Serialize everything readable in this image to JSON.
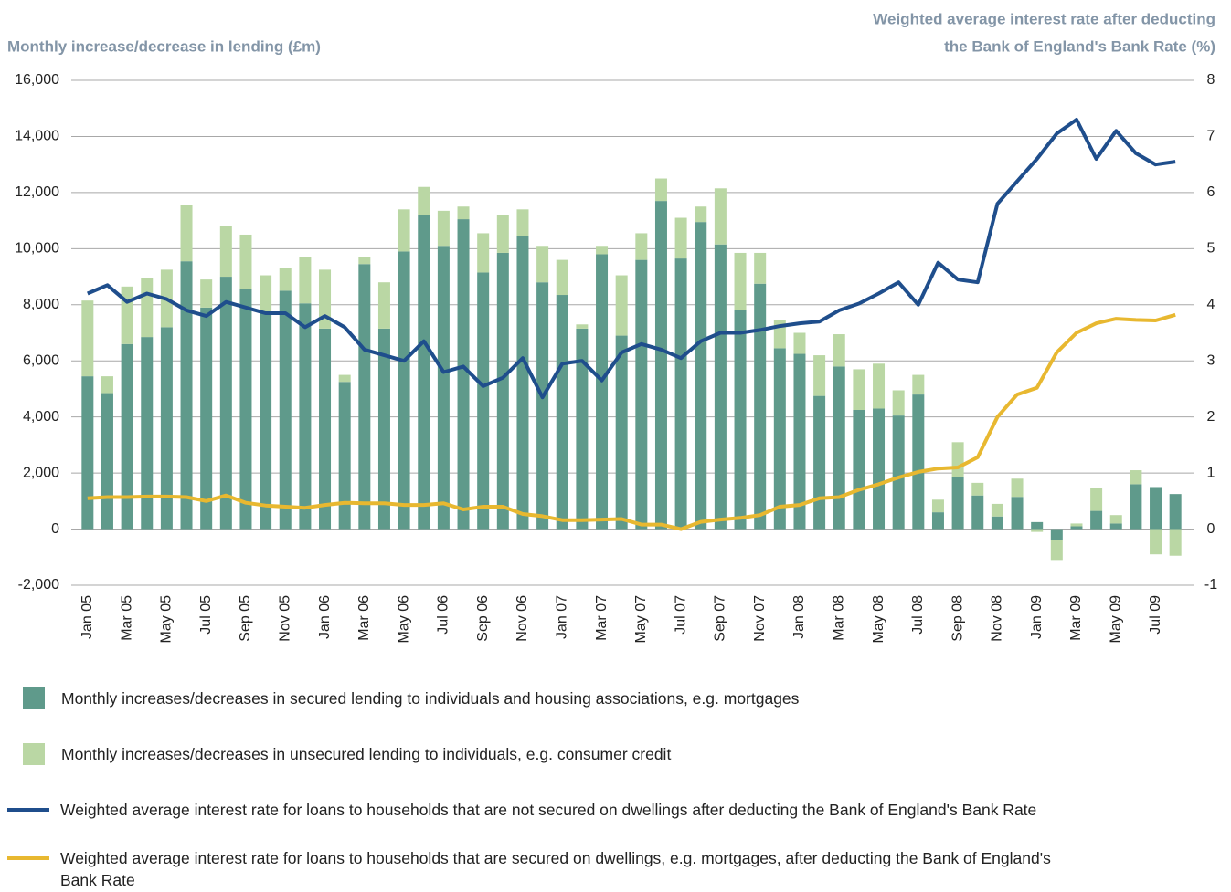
{
  "chart_data": {
    "type": "bar",
    "y_label": "Monthly increase/decrease in lending (£m)",
    "y2_label": [
      "Weighted average interest rate after deducting",
      "the Bank of England's Bank Rate (%)"
    ],
    "categories": [
      "Jan 05",
      null,
      "Mar 05",
      null,
      "May 05",
      null,
      "Jul 05",
      null,
      "Sep 05",
      null,
      "Nov 05",
      null,
      "Jan 06",
      null,
      "Mar 06",
      null,
      "May 06",
      null,
      "Jul 06",
      null,
      "Sep 06",
      null,
      "Nov 06",
      null,
      "Jan 07",
      null,
      "Mar 07",
      null,
      "May 07",
      null,
      "Jul 07",
      null,
      "Sep 07",
      null,
      "Nov 07",
      null,
      "Jan 08",
      null,
      "Mar 08",
      null,
      "May 08",
      null,
      "Jul 08",
      null,
      "Sep 08",
      null,
      "Nov 08",
      null,
      "Jan 09",
      null,
      "Mar 09",
      null,
      "May 09",
      null,
      "Jul 09",
      null
    ],
    "series": [
      {
        "name": "Monthly increases/decreases in secured lending to individuals and housing associations, e.g. mortgages",
        "type": "bar",
        "color": "#5f9a8b",
        "values": [
          5450,
          4850,
          6600,
          6850,
          7200,
          9550,
          7900,
          9000,
          8550,
          7700,
          8500,
          8050,
          7150,
          5250,
          9450,
          7150,
          9900,
          11200,
          10100,
          11050,
          9150,
          9850,
          10450,
          8800,
          8350,
          7150,
          9800,
          6900,
          9600,
          11700,
          9650,
          10950,
          10150,
          7800,
          8750,
          6450,
          6250,
          4750,
          5800,
          4250,
          4300,
          4050,
          4800,
          600,
          1850,
          1200,
          450,
          1150,
          250,
          -400,
          100,
          650,
          200,
          1600,
          1500,
          1250
        ]
      },
      {
        "name": "Monthly increases/decreases in unsecured lending to individuals, e.g. consumer credit",
        "type": "bar",
        "color": "#bad7a4",
        "values": [
          2700,
          600,
          2050,
          2100,
          2050,
          2000,
          1000,
          1800,
          1950,
          1350,
          800,
          1650,
          2100,
          250,
          250,
          1650,
          1500,
          1000,
          1250,
          450,
          1400,
          1350,
          950,
          1300,
          1250,
          150,
          300,
          2150,
          950,
          800,
          1450,
          550,
          2000,
          2050,
          1100,
          1000,
          750,
          1450,
          1150,
          1450,
          1600,
          900,
          700,
          450,
          1250,
          450,
          450,
          650,
          -100,
          -700,
          100,
          800,
          300,
          500,
          -900,
          -950
        ]
      },
      {
        "name": "Weighted average interest rate for loans to households that are not secured on dwellings after deducting the Bank of England's Bank Rate",
        "type": "line",
        "axis": "y2",
        "color": "#1f4e8c",
        "values": [
          4.2,
          4.35,
          4.05,
          4.2,
          4.1,
          3.9,
          3.8,
          4.05,
          3.95,
          3.85,
          3.85,
          3.6,
          3.8,
          3.6,
          3.2,
          3.1,
          3.0,
          3.35,
          2.8,
          2.9,
          2.55,
          2.7,
          3.05,
          2.35,
          2.95,
          3.0,
          2.65,
          3.15,
          3.3,
          3.2,
          3.05,
          3.35,
          3.5,
          3.5,
          3.55,
          3.62,
          3.67,
          3.7,
          3.9,
          4.02,
          4.2,
          4.4,
          4.0,
          4.75,
          4.45,
          4.4,
          5.8,
          6.2,
          6.6,
          7.05,
          7.3,
          6.6,
          7.1,
          6.7,
          6.5,
          6.55
        ]
      },
      {
        "name": "Weighted average interest rate for loans to households that are secured on dwellings, e.g. mortgages, after deducting the Bank of England's Bank Rate",
        "type": "line",
        "axis": "y2",
        "color": "#e8b830",
        "values": [
          0.55,
          0.57,
          0.57,
          0.58,
          0.58,
          0.57,
          0.5,
          0.6,
          0.47,
          0.42,
          0.4,
          0.38,
          0.43,
          0.47,
          0.46,
          0.46,
          0.43,
          0.43,
          0.46,
          0.35,
          0.4,
          0.4,
          0.27,
          0.23,
          0.16,
          0.16,
          0.17,
          0.18,
          0.08,
          0.08,
          0.0,
          0.13,
          0.17,
          0.2,
          0.25,
          0.4,
          0.43,
          0.55,
          0.57,
          0.7,
          0.8,
          0.92,
          1.02,
          1.08,
          1.1,
          1.28,
          2.0,
          2.4,
          2.52,
          3.15,
          3.5,
          3.67,
          3.75,
          3.73,
          3.72,
          3.82
        ]
      }
    ],
    "ylim": [
      -2000,
      16000
    ],
    "yticks": [
      {
        "value": -2000,
        "label": "-2,000"
      },
      0,
      {
        "value": 2000,
        "label": "2,000"
      },
      {
        "value": 4000,
        "label": "4,000"
      },
      {
        "value": 6000,
        "label": "6,000"
      },
      {
        "value": 8000,
        "label": "8,000"
      },
      {
        "value": 10000,
        "label": "10,000"
      },
      {
        "value": 12000,
        "label": "12,000"
      },
      {
        "value": 14000,
        "label": "14,000"
      },
      {
        "value": 16000,
        "label": "16,000"
      }
    ],
    "y2lim": [
      -1,
      8
    ],
    "y2ticks": [
      -1,
      0,
      1,
      2,
      3,
      4,
      5,
      6,
      7,
      8
    ],
    "grid": true
  }
}
